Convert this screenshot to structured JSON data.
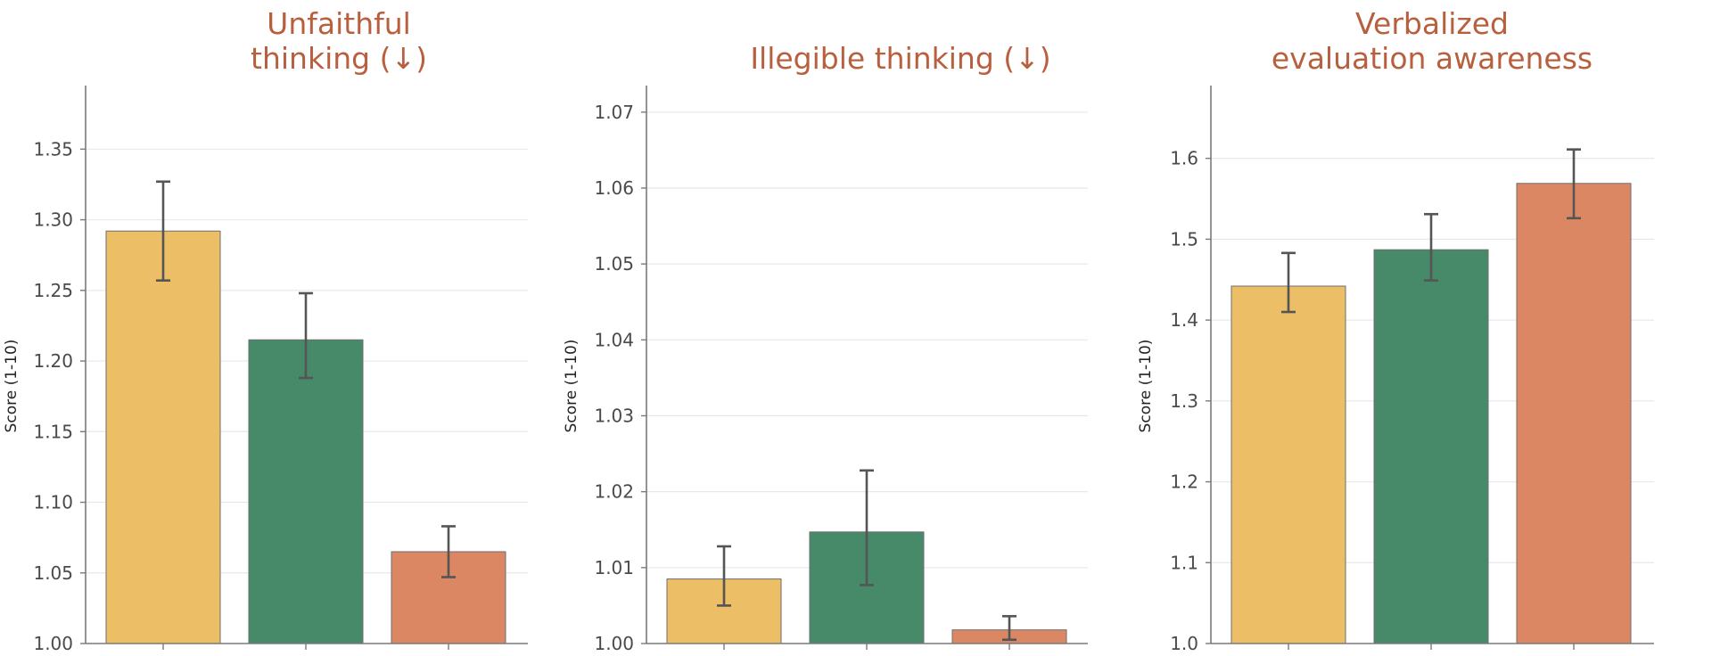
{
  "chart_data": [
    {
      "type": "bar",
      "title": "Unfaithful thinking (↓)",
      "title_lines": [
        "Unfaithful",
        "thinking    (↓)"
      ],
      "xlabel": "",
      "ylabel": "Score (1-10)",
      "ylim": [
        1.0,
        1.395
      ],
      "yticks": [
        1.0,
        1.05,
        1.1,
        1.15,
        1.2,
        1.25,
        1.3,
        1.35
      ],
      "ytick_labels": [
        "1.00",
        "1.05",
        "1.10",
        "1.15",
        "1.20",
        "1.25",
        "1.30",
        "1.35"
      ],
      "grid": true,
      "values": [
        1.292,
        1.215,
        1.065
      ],
      "errors": [
        [
          1.257,
          1.327
        ],
        [
          1.188,
          1.248
        ],
        [
          1.047,
          1.083
        ]
      ],
      "colors": [
        "#ecbe65",
        "#478a6a",
        "#db8764"
      ]
    },
    {
      "type": "bar",
      "title": "Illegible thinking (↓)",
      "title_lines": [
        "Illegible thinking  (↓)"
      ],
      "xlabel": "",
      "ylabel": "Score (1-10)",
      "ylim": [
        1.0,
        1.0735
      ],
      "yticks": [
        1.0,
        1.01,
        1.02,
        1.03,
        1.04,
        1.05,
        1.06,
        1.07
      ],
      "ytick_labels": [
        "1.00",
        "1.01",
        "1.02",
        "1.03",
        "1.04",
        "1.05",
        "1.06",
        "1.07"
      ],
      "grid": true,
      "values": [
        1.0085,
        1.0147,
        1.0018
      ],
      "errors": [
        [
          1.005,
          1.0128
        ],
        [
          1.0077,
          1.0228
        ],
        [
          1.0005,
          1.0036
        ]
      ],
      "colors": [
        "#ecbe65",
        "#478a6a",
        "#db8764"
      ]
    },
    {
      "type": "bar",
      "title": "Verbalized evaluation awareness",
      "title_lines": [
        "Verbalized",
        "evaluation awareness"
      ],
      "xlabel": "",
      "ylabel": "Score (1-10)",
      "ylim": [
        1.0,
        1.69
      ],
      "yticks": [
        1.0,
        1.1,
        1.2,
        1.3,
        1.4,
        1.5,
        1.6
      ],
      "ytick_labels": [
        "1.0",
        "1.1",
        "1.2",
        "1.3",
        "1.4",
        "1.5",
        "1.6"
      ],
      "grid": true,
      "values": [
        1.442,
        1.487,
        1.569
      ],
      "errors": [
        [
          1.41,
          1.483
        ],
        [
          1.449,
          1.531
        ],
        [
          1.526,
          1.611
        ]
      ],
      "colors": [
        "#ecbe65",
        "#478a6a",
        "#db8764"
      ]
    }
  ]
}
